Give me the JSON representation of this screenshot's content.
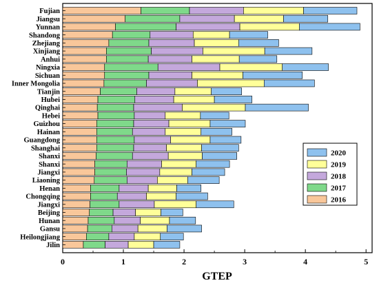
{
  "chart_data": {
    "type": "bar",
    "orientation": "horizontal",
    "stacked": true,
    "xlabel": "GTEP",
    "ylabel": "",
    "xlim": [
      0,
      5.1
    ],
    "xticks": [
      0,
      1,
      2,
      3,
      4,
      5
    ],
    "grid": false,
    "legend_position": "right",
    "categories": [
      "Fujian",
      "Jiangsu",
      "Yunnan",
      "Shandong",
      "Zhejiang",
      "Xinjiang",
      "Anhui",
      "Ningxia",
      "Sichuan",
      "Inner Mongolia",
      "Tianjin",
      "Hubei",
      "Qinghai",
      "Hebei",
      "Guizhou",
      "Hainan",
      "Guangdong",
      "Shanghai",
      "Shanxi",
      "Shanxi",
      "Jiangxi",
      "Liaoning",
      "Henan",
      "Chongqing",
      "Jiangxi",
      "Beijing",
      "Hunan",
      "Gansu",
      "Heilongjiang",
      "Jilin"
    ],
    "series": [
      {
        "name": "2016",
        "color": "#f9c79a",
        "values": [
          1.29,
          1.03,
          0.87,
          0.82,
          0.76,
          0.72,
          0.72,
          0.69,
          0.69,
          0.68,
          0.62,
          0.58,
          0.57,
          0.58,
          0.56,
          0.56,
          0.56,
          0.56,
          0.55,
          0.53,
          0.53,
          0.52,
          0.46,
          0.46,
          0.45,
          0.44,
          0.42,
          0.41,
          0.39,
          0.34
        ]
      },
      {
        "name": "2017",
        "color": "#7fd98a",
        "values": [
          0.8,
          0.9,
          1.0,
          0.62,
          0.66,
          0.74,
          0.69,
          0.88,
          0.73,
          0.7,
          0.6,
          0.61,
          0.6,
          0.6,
          0.61,
          0.59,
          0.62,
          0.61,
          0.6,
          0.53,
          0.52,
          0.54,
          0.47,
          0.44,
          0.48,
          0.39,
          0.43,
          0.4,
          0.37,
          0.36
        ]
      },
      {
        "name": "2018",
        "color": "#c4a8dc",
        "values": [
          0.89,
          0.9,
          1.05,
          0.71,
          0.75,
          0.85,
          0.72,
          1.02,
          0.71,
          0.84,
          0.63,
          0.64,
          0.8,
          0.51,
          0.58,
          0.54,
          0.6,
          0.54,
          0.59,
          0.57,
          0.55,
          0.5,
          0.48,
          0.48,
          0.58,
          0.37,
          0.43,
          0.43,
          0.42,
          0.38
        ]
      },
      {
        "name": "2019",
        "color": "#ffff99",
        "values": [
          0.99,
          0.81,
          0.98,
          0.6,
          0.73,
          1.02,
          0.78,
          1.03,
          0.84,
          1.1,
          0.6,
          0.67,
          1.04,
          0.58,
          0.68,
          0.59,
          0.65,
          0.58,
          0.56,
          0.57,
          0.53,
          0.5,
          0.47,
          0.49,
          0.69,
          0.42,
          0.48,
          0.48,
          0.43,
          0.42
        ]
      },
      {
        "name": "2020",
        "color": "#8ec1ee",
        "values": [
          0.88,
          0.73,
          1.0,
          0.63,
          0.66,
          0.78,
          0.62,
          0.76,
          0.98,
          0.83,
          0.5,
          0.62,
          1.04,
          0.47,
          0.58,
          0.51,
          0.51,
          0.61,
          0.57,
          0.55,
          0.54,
          0.52,
          0.4,
          0.52,
          0.62,
          0.36,
          0.43,
          0.57,
          0.38,
          0.43
        ]
      }
    ]
  }
}
